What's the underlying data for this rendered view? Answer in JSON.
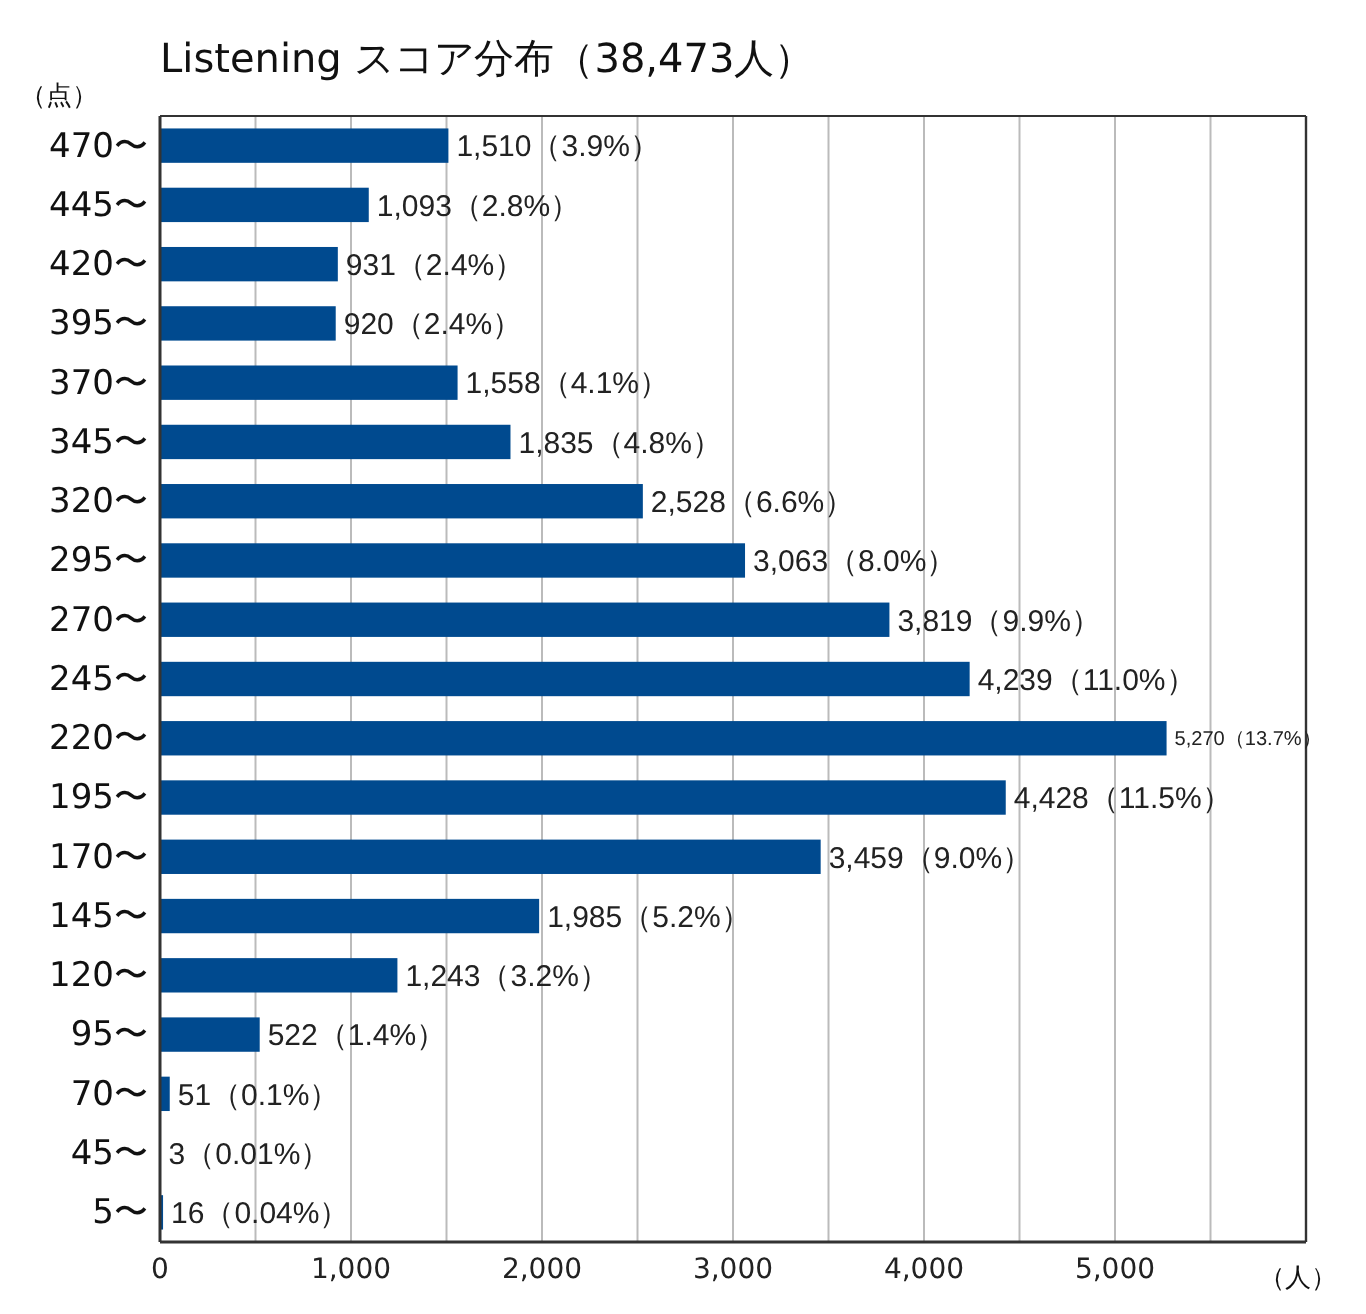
{
  "chart_data": {
    "type": "bar",
    "orientation": "horizontal",
    "title": "Listening スコア分布（38,473人）",
    "ylabel": "（点）",
    "xlabel": "（人）",
    "categories": [
      "470〜",
      "445〜",
      "420〜",
      "395〜",
      "370〜",
      "345〜",
      "320〜",
      "295〜",
      "270〜",
      "245〜",
      "220〜",
      "195〜",
      "170〜",
      "145〜",
      "120〜",
      "95〜",
      "70〜",
      "45〜",
      "5〜"
    ],
    "values": [
      1510,
      1093,
      931,
      920,
      1558,
      1835,
      2528,
      3063,
      3819,
      4239,
      5270,
      4428,
      3459,
      1985,
      1243,
      522,
      51,
      3,
      16
    ],
    "value_labels": [
      "1,510（3.9%）",
      "1,093（2.8%）",
      "931（2.4%）",
      "920（2.4%）",
      "1,558（4.1%）",
      "1,835（4.8%）",
      "2,528（6.6%）",
      "3,063（8.0%）",
      "3,819（9.9%）",
      "4,239（11.0%）",
      "5,270（13.7%）",
      "4,428（11.5%）",
      "3,459（9.0%）",
      "1,985（5.2%）",
      "1,243（3.2%）",
      "522（1.4%）",
      "51（0.1%）",
      "3（0.01%）",
      "16（0.04%）"
    ],
    "color": "#004a8f",
    "xlim": [
      0,
      6000
    ],
    "xticks": [
      0,
      {
        "value": 500,
        "label": null
      },
      {
        "value": 1000,
        "label": "1,000"
      },
      {
        "value": 1500,
        "label": null
      },
      {
        "value": 2000,
        "label": "2,000"
      },
      {
        "value": 2500,
        "label": null
      },
      {
        "value": 3000,
        "label": "3,000"
      },
      {
        "value": 3500,
        "label": null
      },
      {
        "value": 4000,
        "label": "4,000"
      },
      {
        "value": 4500,
        "label": null
      },
      {
        "value": 5000,
        "label": "5,000"
      },
      {
        "value": 5500,
        "label": null
      },
      {
        "value": 6000,
        "label": null
      }
    ],
    "grid": "x"
  }
}
